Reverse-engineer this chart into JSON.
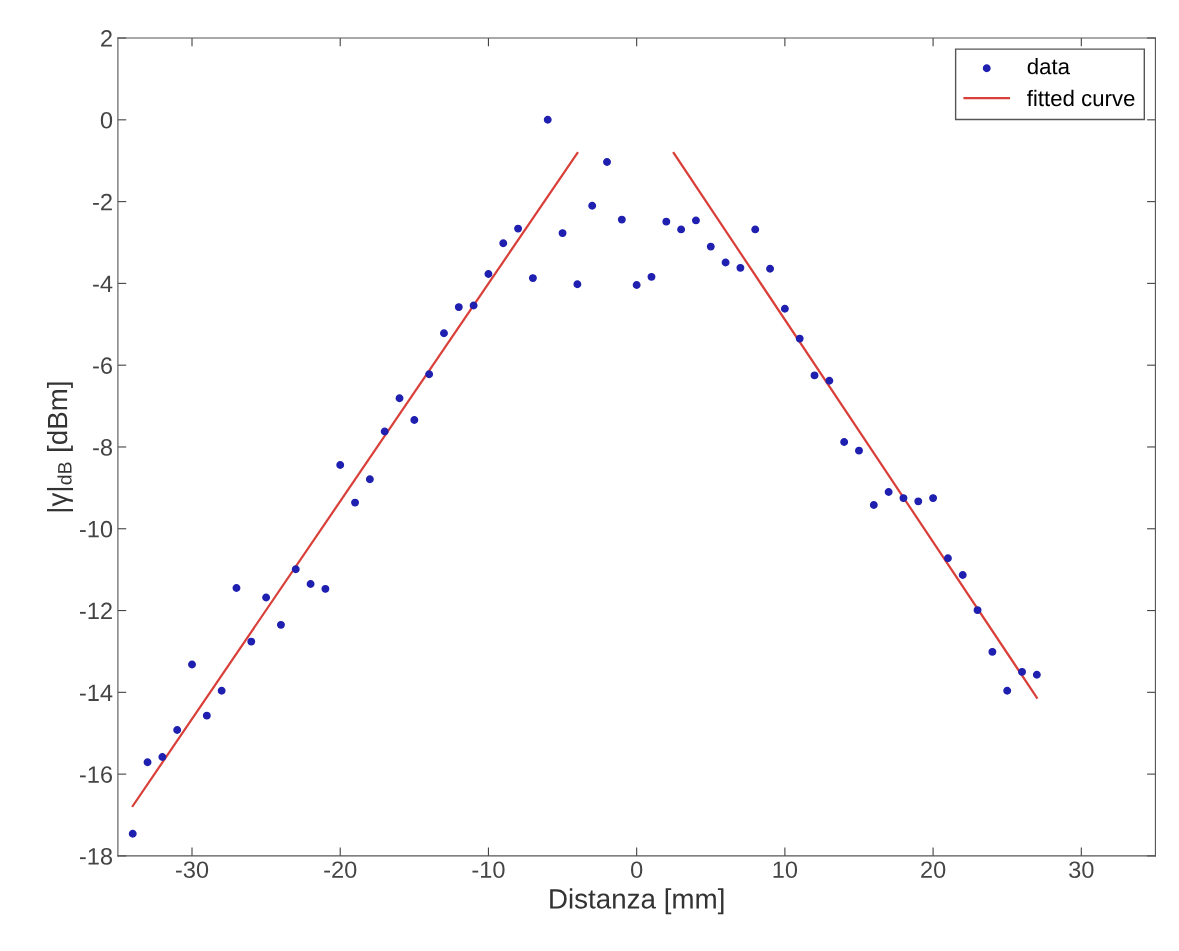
{
  "chart_data": {
    "type": "scatter",
    "xlabel": "Distanza [mm]",
    "ylabel": "|γ|$_{dB}$ [dBm]",
    "xlim": [
      -35,
      35
    ],
    "xticks": [
      -30,
      -20,
      -10,
      0,
      10,
      20,
      30
    ],
    "ylim": [
      -18,
      2
    ],
    "yticks": [
      -18,
      -16,
      -14,
      -12,
      -10,
      -8,
      -6,
      -4,
      -2,
      0,
      2
    ],
    "grid": false,
    "legend": "top right",
    "series": [
      {
        "name": "data",
        "marker": "circle",
        "color": "#1f1fb0",
        "x": [
          -34,
          -33,
          -32,
          -31,
          -30,
          -29,
          -28,
          -27,
          -26,
          -25,
          -24,
          -23,
          -22,
          -21,
          -20,
          -19,
          -18,
          -17,
          -16,
          -15,
          -14,
          -13,
          -12,
          -11,
          -10,
          -9,
          -8,
          -7,
          -6,
          -5,
          -4,
          -3,
          -2,
          -1,
          0,
          1,
          2,
          3,
          4,
          5,
          6,
          7,
          8,
          9,
          10,
          11,
          12,
          13,
          14,
          15,
          16,
          17,
          18,
          19,
          20,
          21,
          22,
          23,
          24,
          25,
          26,
          27
        ],
        "values": [
          -17.46,
          -15.71,
          -15.58,
          -14.92,
          -13.32,
          -14.57,
          -13.96,
          -11.45,
          -12.76,
          -11.68,
          -12.35,
          -10.99,
          -11.35,
          -11.47,
          -8.44,
          -9.36,
          -8.79,
          -7.62,
          -6.81,
          -7.34,
          -6.22,
          -5.22,
          -4.58,
          -4.54,
          -3.77,
          -3.02,
          -2.66,
          -3.87,
          0.0,
          -2.77,
          -4.02,
          -2.1,
          -1.03,
          -2.44,
          -4.04,
          -3.84,
          -2.49,
          -2.68,
          -2.46,
          -3.1,
          -3.49,
          -3.62,
          -2.68,
          -3.64,
          -4.62,
          -5.35,
          -6.25,
          -6.38,
          -7.88,
          -8.09,
          -9.42,
          -9.1,
          -9.25,
          -9.33,
          -9.25,
          -10.72,
          -11.13,
          -11.99,
          -13.01,
          -13.96,
          -13.5,
          -13.57
        ]
      },
      {
        "name": "fitted curve",
        "type": "line",
        "line_style": "solid",
        "color": "#d9403a",
        "x": [
          -34,
          -4
        ],
        "values": [
          -16.78,
          -0.81
        ]
      },
      {
        "type": "line",
        "line_style": "solid",
        "color": "#d9403a",
        "x": [
          2.5,
          27
        ],
        "values": [
          -0.81,
          -14.13
        ]
      }
    ]
  }
}
